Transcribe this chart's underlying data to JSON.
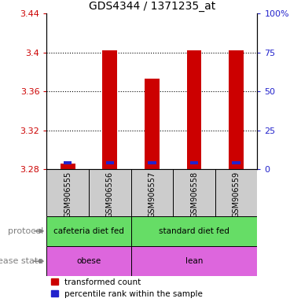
{
  "title": "GDS4344 / 1371235_at",
  "samples": [
    "GSM906555",
    "GSM906556",
    "GSM906557",
    "GSM906558",
    "GSM906559"
  ],
  "red_values": [
    3.2855,
    3.402,
    3.373,
    3.402,
    3.402
  ],
  "blue_values": [
    3.2865,
    3.2865,
    3.2865,
    3.2865,
    3.2865
  ],
  "y_min": 3.28,
  "y_max": 3.44,
  "y_ticks": [
    3.28,
    3.32,
    3.36,
    3.4,
    3.44
  ],
  "y2_ticks": [
    0,
    25,
    50,
    75,
    100
  ],
  "y2_labels": [
    "0",
    "25",
    "50",
    "75",
    "100%"
  ],
  "bar_width": 0.35,
  "red_color": "#cc0000",
  "blue_color": "#2222cc",
  "protocol_labels": [
    "cafeteria diet fed",
    "standard diet fed"
  ],
  "green_color": "#66dd66",
  "magenta_color": "#dd66dd",
  "disease_labels": [
    "obese",
    "lean"
  ],
  "legend_red": "transformed count",
  "legend_blue": "percentile rank within the sample",
  "label_protocol": "protocol",
  "label_disease": "disease state",
  "sample_box_color": "#cccccc",
  "grid_color": "black"
}
